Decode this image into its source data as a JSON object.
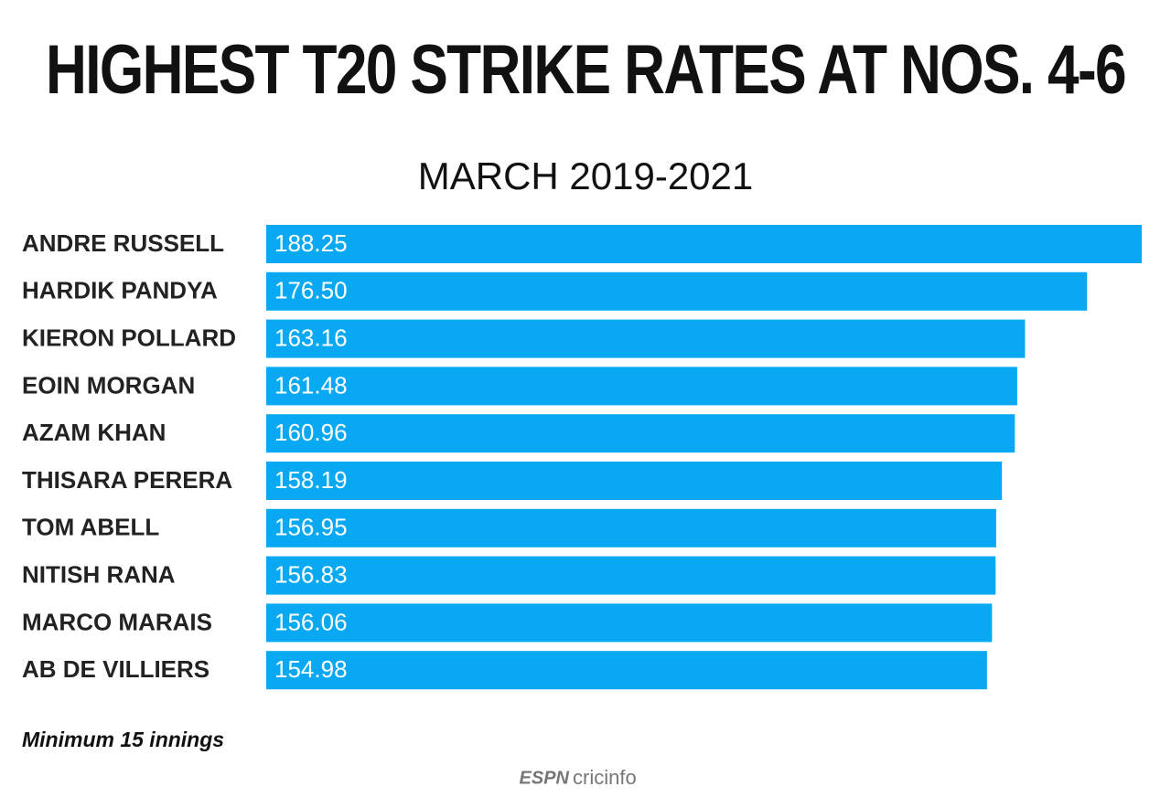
{
  "chart_data": {
    "type": "hbar",
    "title": "HIGHEST T20 STRIKE RATES AT NOS. 4-6",
    "subtitle": "MARCH 2019-2021",
    "categories": [
      "ANDRE RUSSELL",
      "HARDIK PANDYA",
      "KIERON POLLARD",
      "EOIN MORGAN",
      "AZAM KHAN",
      "THISARA PERERA",
      "TOM ABELL",
      "NITISH RANA",
      "MARCO MARAIS",
      "AB DE VILLIERS"
    ],
    "values": [
      188.25,
      176.5,
      163.16,
      161.48,
      160.96,
      158.19,
      156.95,
      156.83,
      156.06,
      154.98
    ],
    "value_labels": [
      "188.25",
      "176.50",
      "163.16",
      "161.48",
      "160.96",
      "158.19",
      "156.95",
      "156.83",
      "156.06",
      "154.98"
    ],
    "color": "#08a9f2",
    "note": "Minimum 15 innings",
    "logo": [
      "ESPN",
      "cricinfo"
    ]
  }
}
